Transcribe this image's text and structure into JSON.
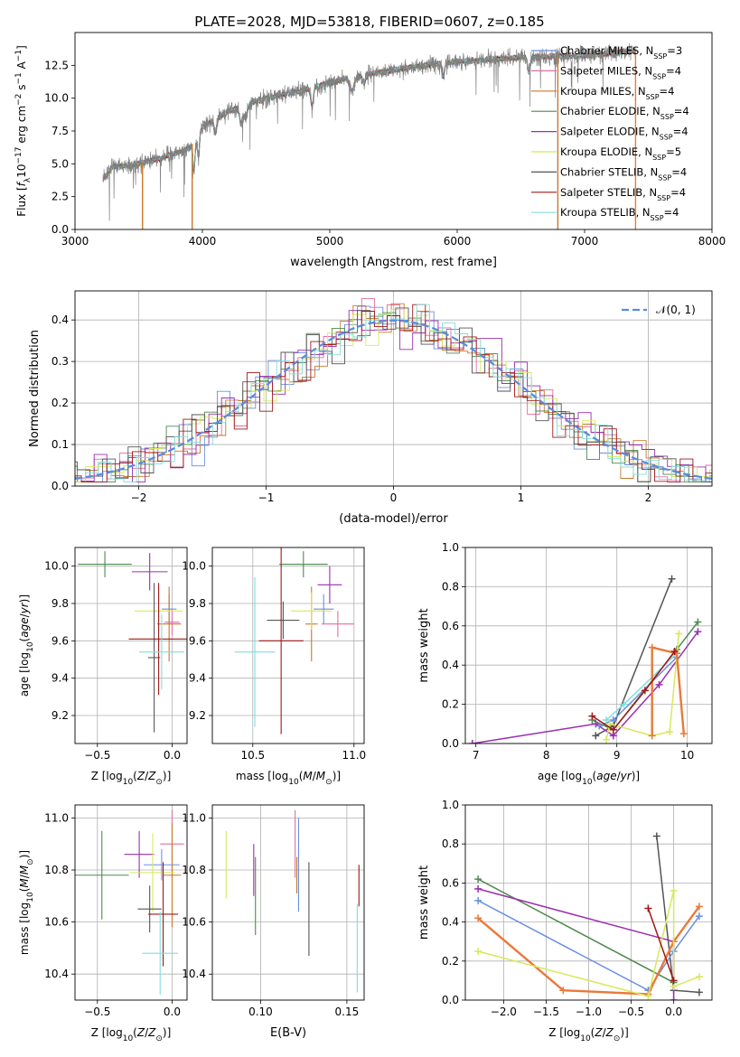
{
  "title": "PLATE=2028, MJD=53818, FIBERID=0607, z=0.185",
  "colors": {
    "Chabrier MILES": "#6b8fe0",
    "Salpeter MILES": "#e06fa0",
    "Kroupa MILES": "#c8782a",
    "Chabrier ELODIE": "#4f8a4f",
    "Salpeter ELODIE": "#9a2fb0",
    "Kroupa ELODIE": "#d8e85a",
    "Chabrier STELIB": "#555555",
    "Salpeter STELIB": "#a01818",
    "Kroupa STELIB": "#80dede",
    "data": "#808080",
    "normal": "#5a8ae0",
    "orange": "#e87a3a"
  },
  "chart_data": [
    {
      "id": "spectrum",
      "type": "line",
      "title": "PLATE=2028, MJD=53818, FIBERID=0607, z=0.185",
      "xlabel": "wavelength [Angstrom, rest frame]",
      "ylabel": "Flux [f_λ10^-17 erg cm^-2 s^-1 A^-1]",
      "xlim": [
        3000,
        8000
      ],
      "ylim": [
        0,
        15
      ],
      "xticks": [
        "3000",
        "4000",
        "5000",
        "6000",
        "7000",
        "8000"
      ],
      "yticks": [
        "0.0",
        "2.5",
        "5.0",
        "7.5",
        "10.0",
        "12.5"
      ],
      "legend_placement": "right",
      "legend": [
        {
          "label": "Chabrier MILES, N",
          "sub": "SSP",
          "suffix": "=3"
        },
        {
          "label": "Salpeter MILES, N",
          "sub": "SSP",
          "suffix": "=4"
        },
        {
          "label": "Kroupa MILES, N",
          "sub": "SSP",
          "suffix": "=4"
        },
        {
          "label": "Chabrier ELODIE, N",
          "sub": "SSP",
          "suffix": "=4"
        },
        {
          "label": "Salpeter ELODIE, N",
          "sub": "SSP",
          "suffix": "=4"
        },
        {
          "label": "Kroupa ELODIE, N",
          "sub": "SSP",
          "suffix": "=5"
        },
        {
          "label": "Chabrier STELIB, N",
          "sub": "SSP",
          "suffix": "=4"
        },
        {
          "label": "Salpeter STELIB, N",
          "sub": "SSP",
          "suffix": "=4"
        },
        {
          "label": "Kroupa STELIB, N",
          "sub": "SSP",
          "suffix": "=4"
        }
      ],
      "continuum": [
        [
          3220,
          3.8
        ],
        [
          3300,
          4.8
        ],
        [
          3500,
          5.0
        ],
        [
          3700,
          5.5
        ],
        [
          3900,
          6.2
        ],
        [
          4000,
          7.8
        ],
        [
          4200,
          9.0
        ],
        [
          4500,
          10.0
        ],
        [
          4800,
          10.6
        ],
        [
          5000,
          11.2
        ],
        [
          5300,
          11.8
        ],
        [
          5600,
          12.3
        ],
        [
          5900,
          12.7
        ],
        [
          6200,
          12.9
        ],
        [
          6500,
          13.1
        ],
        [
          6800,
          13.2
        ],
        [
          7000,
          13.2
        ],
        [
          7200,
          13.4
        ],
        [
          7400,
          13.6
        ]
      ],
      "edges": [
        {
          "x": 3530,
          "color": "Kroupa MILES"
        },
        {
          "x": 3920,
          "color": "Kroupa MILES"
        },
        {
          "x": 6790,
          "color": "Kroupa MILES"
        },
        {
          "x": 7400,
          "color": "orange"
        }
      ]
    },
    {
      "id": "residuals",
      "type": "line",
      "xlabel": "(data-model)/error",
      "ylabel": "Normed distribution",
      "xlim": [
        -2.5,
        2.5
      ],
      "ylim": [
        0,
        0.47
      ],
      "xticks": [
        "−2",
        "−1",
        "0",
        "1",
        "2"
      ],
      "yticks": [
        "0.0",
        "0.1",
        "0.2",
        "0.3",
        "0.4"
      ],
      "legend": "𝒩(0, 1)",
      "bin_width": 0.1
    },
    {
      "id": "z-age",
      "type": "scatter",
      "xlabel": "Z [log10(Z/Z⊙)]",
      "ylabel": "age [log10(age/yr)]",
      "xlim": [
        -0.65,
        0.1
      ],
      "ylim": [
        9.05,
        10.1
      ],
      "xticks": [
        "−0.5",
        "0.0"
      ],
      "yticks": [
        "9.2",
        "9.4",
        "9.6",
        "9.8",
        "10.0"
      ],
      "points": [
        {
          "s": "Chabrier MILES",
          "x": -0.02,
          "y": 9.77,
          "xe": 0.05,
          "ye": 0.08
        },
        {
          "s": "Salpeter MILES",
          "x": 0.0,
          "y": 9.7,
          "xe": 0.05,
          "ye": 0.07
        },
        {
          "s": "Kroupa MILES",
          "x": -0.02,
          "y": 9.69,
          "xe": 0.08,
          "ye": 0.2
        },
        {
          "s": "Chabrier ELODIE",
          "x": -0.45,
          "y": 10.01,
          "xe": 0.18,
          "ye": 0.07
        },
        {
          "s": "Salpeter ELODIE",
          "x": -0.15,
          "y": 9.97,
          "xe": 0.12,
          "ye": 0.1
        },
        {
          "s": "Kroupa ELODIE",
          "x": -0.09,
          "y": 9.76,
          "xe": 0.16,
          "ye": 0.1
        },
        {
          "s": "Chabrier STELIB",
          "x": -0.12,
          "y": 9.51,
          "xe": 0.04,
          "ye": 0.4
        },
        {
          "s": "Salpeter STELIB",
          "x": -0.09,
          "y": 9.61,
          "xe": 0.2,
          "ye": 0.3
        },
        {
          "s": "Kroupa STELIB",
          "x": -0.07,
          "y": 9.54,
          "xe": 0.15,
          "ye": 0.2
        }
      ]
    },
    {
      "id": "mass-age",
      "type": "scatter",
      "xlabel": "mass [log10(M/M⊙)]",
      "ylabel": "",
      "xlim": [
        10.3,
        11.05
      ],
      "ylim": [
        9.05,
        10.1
      ],
      "xticks": [
        "10.5",
        "11.0"
      ],
      "yticks": [
        "9.2",
        "9.4",
        "9.6",
        "9.8",
        "10.0"
      ],
      "points": [
        {
          "s": "Chabrier MILES",
          "x": 10.85,
          "y": 9.77,
          "xe": 0.05,
          "ye": 0.08
        },
        {
          "s": "Salpeter MILES",
          "x": 10.92,
          "y": 9.69,
          "xe": 0.08,
          "ye": 0.07
        },
        {
          "s": "Kroupa MILES",
          "x": 10.79,
          "y": 9.69,
          "xe": 0.03,
          "ye": 0.2
        },
        {
          "s": "Chabrier ELODIE",
          "x": 10.75,
          "y": 10.01,
          "xe": 0.12,
          "ye": 0.07
        },
        {
          "s": "Salpeter ELODIE",
          "x": 10.88,
          "y": 9.9,
          "xe": 0.06,
          "ye": 0.1
        },
        {
          "s": "Kroupa ELODIE",
          "x": 10.79,
          "y": 9.76,
          "xe": 0.1,
          "ye": 0.1
        },
        {
          "s": "Chabrier STELIB",
          "x": 10.65,
          "y": 9.71,
          "xe": 0.08,
          "ye": 0.1
        },
        {
          "s": "Salpeter STELIB",
          "x": 10.64,
          "y": 9.6,
          "xe": 0.11,
          "ye": 0.5
        },
        {
          "s": "Kroupa STELIB",
          "x": 10.51,
          "y": 9.54,
          "xe": 0.1,
          "ye": 0.4
        }
      ]
    },
    {
      "id": "age-weight",
      "type": "line",
      "xlabel": "age [log10(age/yr)]",
      "ylabel": "mass weight",
      "xlim": [
        6.85,
        10.35
      ],
      "ylim": [
        0,
        1.0
      ],
      "xticks": [
        "7",
        "8",
        "9",
        "10"
      ],
      "yticks": [
        "0.0",
        "0.2",
        "0.4",
        "0.6",
        "0.8",
        "1.0"
      ],
      "series": [
        {
          "s": "Chabrier STELIB",
          "points": [
            [
              8.7,
              0.04
            ],
            [
              8.95,
              0.09
            ],
            [
              9.78,
              0.84
            ]
          ]
        },
        {
          "s": "Chabrier ELODIE",
          "points": [
            [
              8.65,
              0.12
            ],
            [
              8.95,
              0.07
            ],
            [
              9.85,
              0.48
            ],
            [
              10.15,
              0.62
            ]
          ]
        },
        {
          "s": "Salpeter ELODIE",
          "points": [
            [
              6.95,
              0.0
            ],
            [
              8.7,
              0.1
            ],
            [
              8.95,
              0.04
            ],
            [
              9.6,
              0.3
            ],
            [
              10.15,
              0.57
            ]
          ]
        },
        {
          "s": "Chabrier MILES",
          "points": [
            [
              8.75,
              0.09
            ],
            [
              8.95,
              0.12
            ],
            [
              9.85,
              0.44
            ]
          ]
        },
        {
          "s": "Kroupa STELIB",
          "points": [
            [
              8.85,
              0.12
            ],
            [
              9.1,
              0.2
            ],
            [
              9.85,
              0.46
            ]
          ]
        },
        {
          "s": "Kroupa ELODIE",
          "points": [
            [
              8.85,
              0.02
            ],
            [
              8.9,
              0.1
            ],
            [
              9.5,
              0.04
            ],
            [
              9.75,
              0.06
            ],
            [
              9.88,
              0.56
            ]
          ]
        },
        {
          "s": "orange",
          "points": [
            [
              9.5,
              0.04
            ],
            [
              9.5,
              0.49
            ],
            [
              9.85,
              0.46
            ],
            [
              9.95,
              0.05
            ]
          ]
        },
        {
          "s": "Salpeter STELIB",
          "points": [
            [
              8.65,
              0.14
            ],
            [
              8.95,
              0.07
            ],
            [
              9.4,
              0.27
            ],
            [
              9.82,
              0.47
            ]
          ]
        }
      ]
    },
    {
      "id": "z-mass",
      "type": "scatter",
      "xlabel": "Z [log10(Z/Z⊙)]",
      "ylabel": "mass [log10(M/M⊙)]",
      "xlim": [
        -0.65,
        0.1
      ],
      "ylim": [
        10.3,
        11.05
      ],
      "xticks": [
        "−0.5",
        "0.0"
      ],
      "yticks": [
        "10.4",
        "10.6",
        "10.8",
        "11.0"
      ],
      "points": [
        {
          "s": "Chabrier MILES",
          "x": -0.07,
          "y": 10.82,
          "xe": 0.12,
          "ye": 0.06
        },
        {
          "s": "Salpeter MILES",
          "x": 0.0,
          "y": 10.9,
          "xe": 0.08,
          "ye": 0.13
        },
        {
          "s": "Kroupa MILES",
          "x": 0.0,
          "y": 10.78,
          "xe": 0.06,
          "ye": 0.2
        },
        {
          "s": "Chabrier ELODIE",
          "x": -0.47,
          "y": 10.78,
          "xe": 0.18,
          "ye": 0.17
        },
        {
          "s": "Salpeter ELODIE",
          "x": -0.22,
          "y": 10.86,
          "xe": 0.1,
          "ye": 0.09
        },
        {
          "s": "Kroupa ELODIE",
          "x": -0.13,
          "y": 10.79,
          "xe": 0.15,
          "ye": 0.15
        },
        {
          "s": "Chabrier STELIB",
          "x": -0.15,
          "y": 10.65,
          "xe": 0.08,
          "ye": 0.09
        },
        {
          "s": "Salpeter STELIB",
          "x": -0.06,
          "y": 10.63,
          "xe": 0.1,
          "ye": 0.2
        },
        {
          "s": "Kroupa STELIB",
          "x": -0.08,
          "y": 10.48,
          "xe": 0.12,
          "ye": 0.16
        }
      ]
    },
    {
      "id": "ebv-mass",
      "type": "scatter",
      "xlabel": "E(B-V)",
      "ylabel": "",
      "xlim": [
        0.072,
        0.16
      ],
      "ylim": [
        10.3,
        11.05
      ],
      "xticks": [
        "0.10",
        "0.15"
      ],
      "yticks": [
        "10.4",
        "10.6",
        "10.8",
        "11.0"
      ],
      "points": [
        {
          "s": "Chabrier MILES",
          "x": 0.122,
          "y": 10.82,
          "xe": 0,
          "ye": 0.18
        },
        {
          "s": "Salpeter MILES",
          "x": 0.12,
          "y": 10.9,
          "xe": 0,
          "ye": 0.13
        },
        {
          "s": "Kroupa MILES",
          "x": 0.121,
          "y": 10.78,
          "xe": 0,
          "ye": 0.07
        },
        {
          "s": "Chabrier ELODIE",
          "x": 0.097,
          "y": 10.7,
          "xe": 0,
          "ye": 0.15
        },
        {
          "s": "Salpeter ELODIE",
          "x": 0.096,
          "y": 10.8,
          "xe": 0,
          "ye": 0.1
        },
        {
          "s": "Kroupa ELODIE",
          "x": 0.08,
          "y": 10.82,
          "xe": 0,
          "ye": 0.13
        },
        {
          "s": "Chabrier STELIB",
          "x": 0.128,
          "y": 10.65,
          "xe": 0,
          "ye": 0.18
        },
        {
          "s": "Salpeter STELIB",
          "x": 0.157,
          "y": 10.74,
          "xe": 0,
          "ye": 0.08
        },
        {
          "s": "Kroupa STELIB",
          "x": 0.156,
          "y": 10.5,
          "xe": 0,
          "ye": 0.17
        }
      ]
    },
    {
      "id": "z-weight",
      "type": "line",
      "xlabel": "Z [log10(Z/Z⊙)]",
      "ylabel": "mass weight",
      "xlim": [
        -2.45,
        0.45
      ],
      "ylim": [
        0,
        1.0
      ],
      "xticks": [
        "−2.0",
        "−1.5",
        "−1.0",
        "−0.5",
        "0.0"
      ],
      "yticks": [
        "0.0",
        "0.2",
        "0.4",
        "0.6",
        "0.8",
        "1.0"
      ],
      "series": [
        {
          "s": "Chabrier STELIB",
          "points": [
            [
              -0.2,
              0.84
            ],
            [
              0.0,
              0.05
            ],
            [
              0.3,
              0.04
            ]
          ]
        },
        {
          "s": "Chabrier ELODIE",
          "points": [
            [
              -2.3,
              0.62
            ],
            [
              0.0,
              0.09
            ],
            [
              0.0,
              0.3
            ]
          ]
        },
        {
          "s": "Salpeter ELODIE",
          "points": [
            [
              -2.3,
              0.57
            ],
            [
              0.0,
              0.3
            ],
            [
              0.0,
              0.0
            ]
          ]
        },
        {
          "s": "Chabrier MILES",
          "points": [
            [
              -2.3,
              0.51
            ],
            [
              -0.3,
              0.05
            ],
            [
              0.0,
              0.25
            ],
            [
              0.3,
              0.43
            ]
          ]
        },
        {
          "s": "orange",
          "points": [
            [
              -2.3,
              0.42
            ],
            [
              -1.3,
              0.05
            ],
            [
              -0.3,
              0.03
            ],
            [
              0.0,
              0.3
            ],
            [
              0.3,
              0.48
            ]
          ]
        },
        {
          "s": "Kroupa ELODIE",
          "points": [
            [
              -2.3,
              0.25
            ],
            [
              -0.3,
              0.02
            ],
            [
              0.0,
              0.56
            ],
            [
              0.0,
              0.07
            ],
            [
              0.3,
              0.12
            ]
          ]
        },
        {
          "s": "Salpeter STELIB",
          "points": [
            [
              -0.3,
              0.47
            ],
            [
              0.0,
              0.1
            ]
          ]
        }
      ]
    }
  ]
}
